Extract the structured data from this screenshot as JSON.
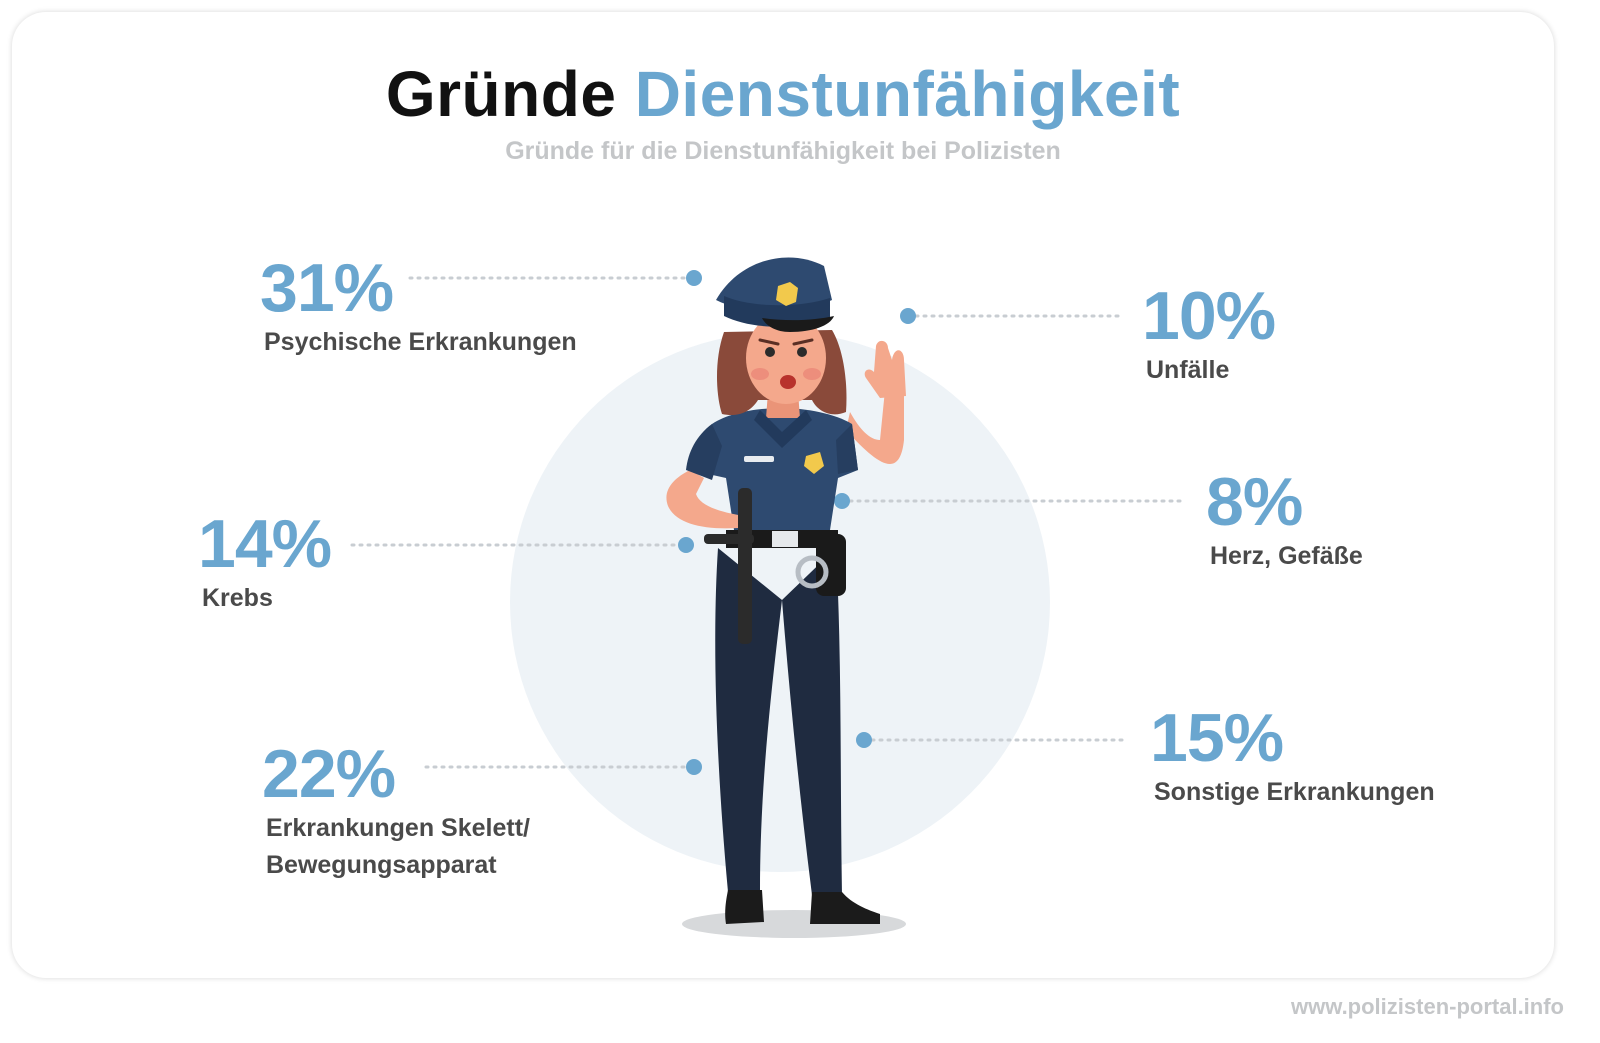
{
  "header": {
    "title_part1": "Gründe",
    "title_part2": "Dienstunfähigkeit",
    "subtitle": "Gründe für die Dienstunfähigkeit bei Polizisten"
  },
  "chart_data": {
    "type": "infographic",
    "title": "Gründe Dienstunfähigkeit",
    "subtitle": "Gründe für die Dienstunfähigkeit bei Polizisten",
    "unit": "%",
    "items": [
      {
        "label": "Psychische Erkrankungen",
        "value": 31,
        "display": "31%"
      },
      {
        "label": "Krebs",
        "value": 14,
        "display": "14%"
      },
      {
        "label": "Erkrankungen Skelett/ Bewegungsapparat",
        "label_line1": "Erkrankungen Skelett/",
        "label_line2": "Bewegungsapparat",
        "value": 22,
        "display": "22%"
      },
      {
        "label": "Unfälle",
        "value": 10,
        "display": "10%"
      },
      {
        "label": "Herz, Gefäße",
        "value": 8,
        "display": "8%"
      },
      {
        "label": "Sonstige Erkrankungen",
        "value": 15,
        "display": "15%"
      }
    ]
  },
  "colors": {
    "accent": "#6aa6cf",
    "label": "#4a4a4a",
    "muted": "#c4c6c8",
    "backdrop": "#eef3f7",
    "uniform": "#2e4a70",
    "trousers": "#1f2b40"
  },
  "illustration": "policewoman-illustration",
  "footer": {
    "website": "www.polizisten-portal.info"
  }
}
